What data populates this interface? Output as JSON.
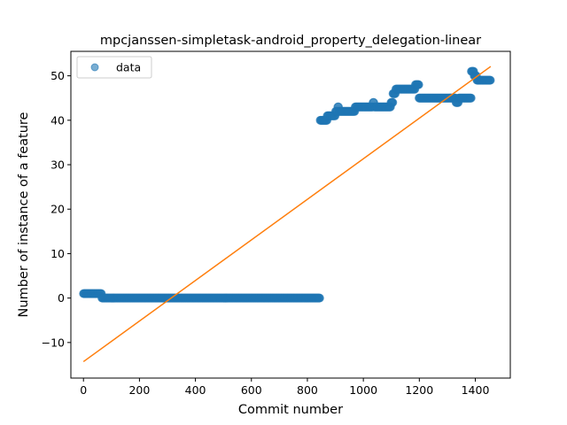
{
  "chart_data": {
    "type": "scatter",
    "title": "mpcjanssen-simpletask-android_property_delegation-linear",
    "xlabel": "Commit number",
    "ylabel": "Number of instance of a feature",
    "xlim": [
      -45,
      1525
    ],
    "ylim": [
      -18,
      55.5
    ],
    "xticks": [
      0,
      200,
      400,
      600,
      800,
      1000,
      1200,
      1400
    ],
    "yticks": [
      -10,
      0,
      10,
      20,
      30,
      40,
      50
    ],
    "grid": false,
    "legend": {
      "placement": "top-left",
      "entries": [
        "data"
      ]
    },
    "series": [
      {
        "name": "data",
        "kind": "scatter",
        "color": "#1f77b4",
        "segments": [
          {
            "x_start": 0,
            "x_end": 65,
            "y": 1
          },
          {
            "x_start": 66,
            "x_end": 845,
            "y": 0
          },
          {
            "x_start": 846,
            "x_end": 870,
            "y": 40
          },
          {
            "x_start": 871,
            "x_end": 900,
            "y": 41
          },
          {
            "x_start": 901,
            "x_end": 908,
            "y": 42
          },
          {
            "x_start": 909,
            "x_end": 912,
            "y": 43
          },
          {
            "x_start": 913,
            "x_end": 970,
            "y": 42
          },
          {
            "x_start": 971,
            "x_end": 1034,
            "y": 43
          },
          {
            "x_start": 1035,
            "x_end": 1038,
            "y": 44
          },
          {
            "x_start": 1039,
            "x_end": 1098,
            "y": 43
          },
          {
            "x_start": 1099,
            "x_end": 1105,
            "y": 44
          },
          {
            "x_start": 1106,
            "x_end": 1115,
            "y": 46
          },
          {
            "x_start": 1116,
            "x_end": 1185,
            "y": 47
          },
          {
            "x_start": 1186,
            "x_end": 1198,
            "y": 48
          },
          {
            "x_start": 1199,
            "x_end": 1330,
            "y": 45
          },
          {
            "x_start": 1331,
            "x_end": 1340,
            "y": 44
          },
          {
            "x_start": 1341,
            "x_end": 1385,
            "y": 45
          },
          {
            "x_start": 1386,
            "x_end": 1395,
            "y": 51
          },
          {
            "x_start": 1396,
            "x_end": 1405,
            "y": 50
          },
          {
            "x_start": 1406,
            "x_end": 1455,
            "y": 49
          }
        ]
      },
      {
        "name": "",
        "kind": "line",
        "color": "#ff7f0e",
        "x": [
          0,
          1455
        ],
        "y": [
          -14.3,
          52.1
        ]
      }
    ]
  }
}
